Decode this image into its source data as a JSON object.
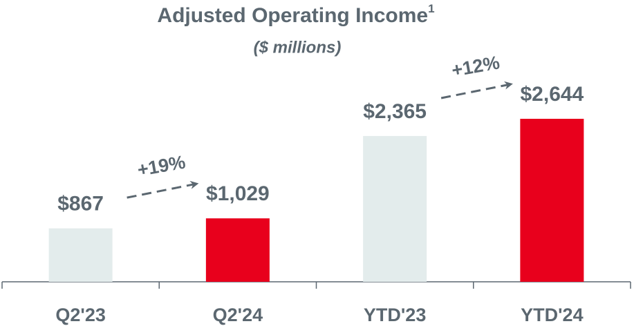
{
  "chart_data": {
    "type": "bar",
    "title": "Adjusted Operating Income",
    "title_footnote": "1",
    "subtitle": "($ millions)",
    "categories": [
      "Q2'23",
      "Q2'24",
      "YTD'23",
      "YTD'24"
    ],
    "values": [
      867,
      1029,
      2365,
      2644
    ],
    "value_labels": [
      "$867",
      "$1,029",
      "$2,365",
      "$2,644"
    ],
    "colors": [
      "#e3ecec",
      "#e8001c",
      "#e3ecec",
      "#e8001c"
    ],
    "annotations": [
      "+19%",
      "+12%"
    ]
  }
}
